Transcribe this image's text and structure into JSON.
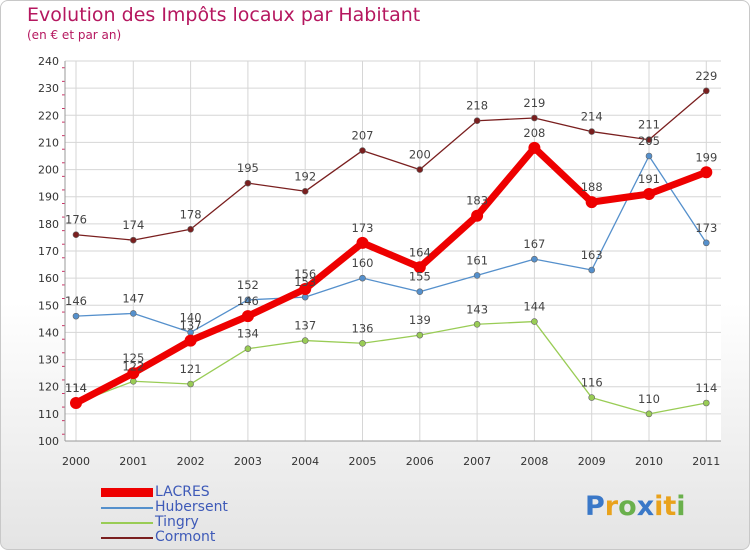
{
  "title": "Evolution des Impôts locaux par Habitant",
  "subtitle": "(en € et par an)",
  "chart_data": {
    "type": "line",
    "title": "Evolution des Impôts locaux par Habitant",
    "subtitle": "(en € et par an)",
    "x": [
      "2000",
      "2001",
      "2002",
      "2003",
      "2004",
      "2005",
      "2006",
      "2007",
      "2008",
      "2009",
      "2010",
      "2011"
    ],
    "ylim": [
      100,
      240
    ],
    "yticks": [
      100,
      110,
      120,
      130,
      140,
      150,
      160,
      170,
      180,
      190,
      200,
      210,
      220,
      230,
      240
    ],
    "grid": true,
    "xlabel": "",
    "ylabel": "",
    "series": [
      {
        "name": "Cormont",
        "color": "#7a1f1f",
        "values": [
          176,
          174,
          178,
          195,
          192,
          207,
          200,
          218,
          219,
          214,
          211,
          229
        ]
      },
      {
        "name": "Tingry",
        "color": "#99cc55",
        "values": [
          114,
          122,
          121,
          134,
          137,
          136,
          139,
          143,
          144,
          116,
          110,
          114
        ]
      },
      {
        "name": "Hubersent",
        "color": "#5590cc",
        "values": [
          146,
          147,
          140,
          152,
          153,
          160,
          155,
          161,
          167,
          163,
          205,
          173
        ]
      },
      {
        "name": "LACRES",
        "color": "#ee0000",
        "values": [
          114,
          125,
          137,
          146,
          156,
          173,
          164,
          183,
          208,
          188,
          191,
          199
        ]
      }
    ]
  },
  "legend": [
    {
      "label": "LACRES",
      "color": "#ee0000"
    },
    {
      "label": "Hubersent",
      "color": "#5590cc"
    },
    {
      "label": "Tingry",
      "color": "#99cc55"
    },
    {
      "label": "Cormont",
      "color": "#7a1f1f"
    }
  ],
  "logo": {
    "text": "Proxiti",
    "letter_colors": [
      "#3a78c8",
      "#e9a21c",
      "#6ab04c",
      "#3a78c8",
      "#e9a21c",
      "#e9a21c",
      "#6ab04c"
    ]
  }
}
